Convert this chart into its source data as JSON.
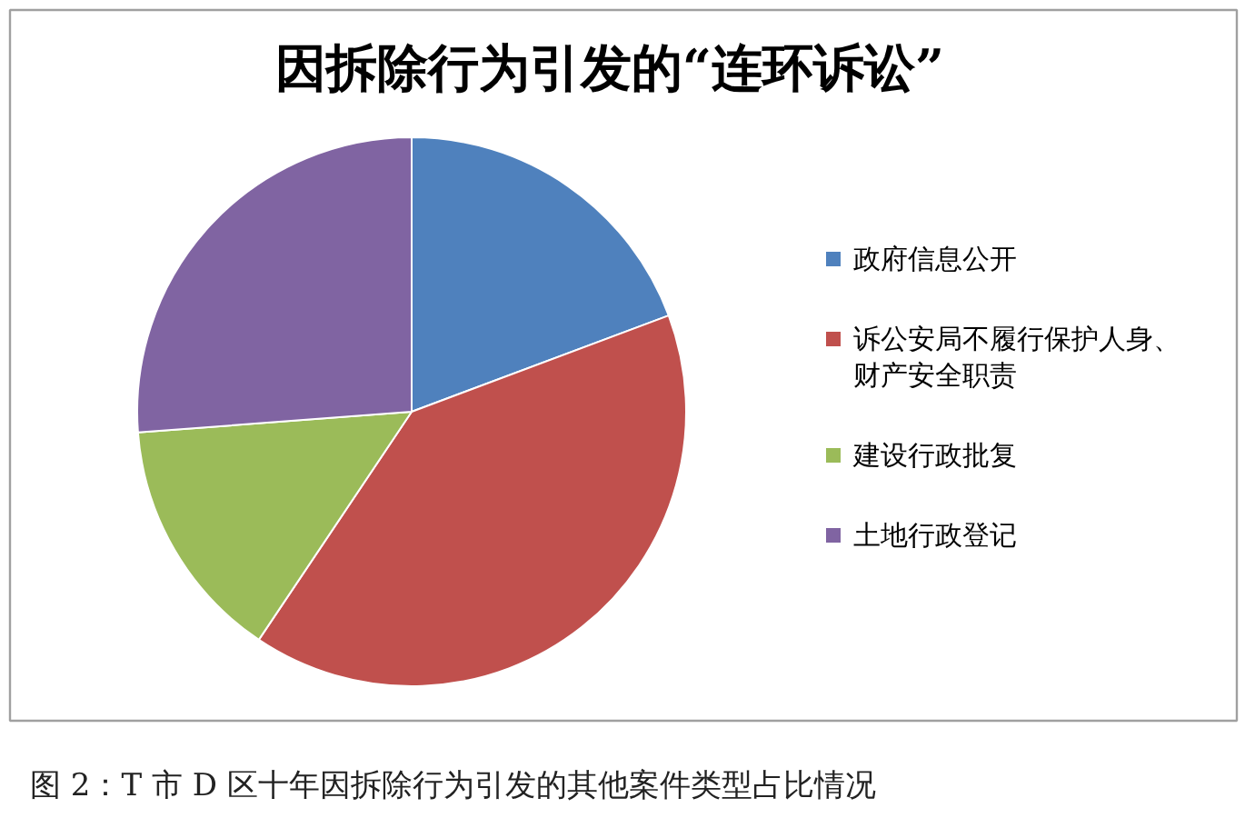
{
  "chart_data": {
    "type": "pie",
    "title": "因拆除行为引发的“连环诉讼”",
    "categories": [
      "政府信息公开",
      "诉公安局不履行保护人身、财产安全职责",
      "建设行政批复",
      "土地行政登记"
    ],
    "values": [
      19.3,
      40.1,
      14.4,
      26.2
    ],
    "colors": [
      "#4f81bd",
      "#c0504d",
      "#9bbb59",
      "#8064a2"
    ],
    "legend": "right",
    "annotations": [
      "图 2：T 市 D 区十年因拆除行为引发的其他案件类型占比情况"
    ]
  }
}
